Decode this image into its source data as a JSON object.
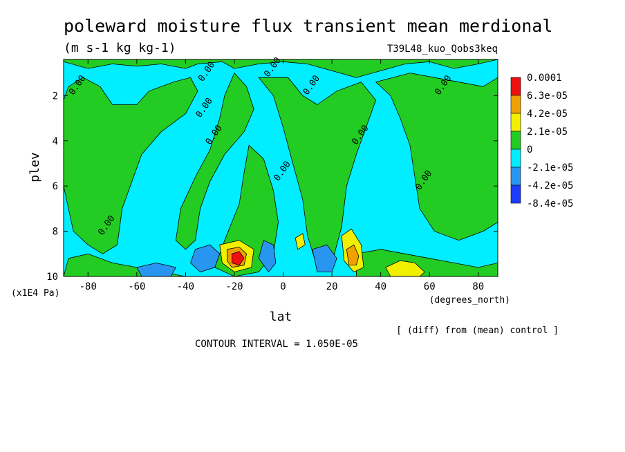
{
  "chart_data": {
    "type": "heatmap",
    "title": "poleward moisture flux transient mean merdional",
    "units": "(m s-1 kg kg-1)",
    "experiment": "T39L48_kuo_Qobs3keq",
    "xlabel": "lat",
    "xunits": "(degrees_north)",
    "ylabel": "plev",
    "yunits": "(x1E4 Pa)",
    "xlim": [
      -90,
      88
    ],
    "ylim": [
      0.4,
      10
    ],
    "y_inverted": true,
    "x_ticks": [
      -80,
      -60,
      -40,
      -20,
      0,
      20,
      40,
      60,
      80
    ],
    "y_ticks": [
      2,
      4,
      6,
      8,
      10
    ],
    "contour_label": "0.00",
    "contour_interval_text": "CONTOUR INTERVAL = 1.050E-05",
    "diff_note": "[ (diff) from (mean) control ]",
    "legend": {
      "levels": [
        "0.0001",
        "6.3e-05",
        "4.2e-05",
        "2.1e-05",
        "0",
        "-2.1e-05",
        "-4.2e-05",
        "-8.4e-05"
      ],
      "colors": [
        "#ee1010",
        "#f0a000",
        "#f0f000",
        "#22cc22",
        "#00eeff",
        "#2896f0",
        "#1e3cff"
      ]
    },
    "field_regions": [
      {
        "value": 0,
        "color": "#22cc22",
        "points": [
          [
            -90,
            0.5
          ],
          [
            -80,
            0.8
          ],
          [
            -70,
            0.6
          ],
          [
            -60,
            0.7
          ],
          [
            -50,
            0.6
          ],
          [
            -40,
            0.8
          ],
          [
            -35,
            0.6
          ],
          [
            -25,
            0.5
          ],
          [
            -20,
            0.8
          ],
          [
            -10,
            0.6
          ],
          [
            0,
            0.5
          ],
          [
            10,
            0.6
          ],
          [
            20,
            0.9
          ],
          [
            30,
            1.2
          ],
          [
            40,
            0.9
          ],
          [
            50,
            0.6
          ],
          [
            60,
            0.5
          ],
          [
            70,
            0.8
          ],
          [
            80,
            0.6
          ],
          [
            88,
            0.4
          ],
          [
            88,
            0.4
          ],
          [
            -90,
            0.4
          ]
        ]
      },
      {
        "value": 0,
        "color": "#22cc22",
        "points": [
          [
            -88,
            1.6
          ],
          [
            -82,
            1.2
          ],
          [
            -75,
            1.6
          ],
          [
            -70,
            2.4
          ],
          [
            -60,
            2.4
          ],
          [
            -55,
            1.8
          ],
          [
            -45,
            1.4
          ],
          [
            -38,
            1.2
          ],
          [
            -35,
            1.8
          ],
          [
            -40,
            2.8
          ],
          [
            -50,
            3.6
          ],
          [
            -58,
            4.6
          ],
          [
            -62,
            5.8
          ],
          [
            -66,
            7.0
          ],
          [
            -68,
            8.6
          ],
          [
            -74,
            9.0
          ],
          [
            -80,
            8.6
          ],
          [
            -86,
            8.0
          ],
          [
            -88,
            7.0
          ],
          [
            -90,
            6.0
          ],
          [
            -90,
            2.2
          ]
        ]
      },
      {
        "value": 0,
        "color": "#22cc22",
        "points": [
          [
            -20,
            1.0
          ],
          [
            -15,
            1.6
          ],
          [
            -12,
            2.6
          ],
          [
            -16,
            3.6
          ],
          [
            -24,
            4.6
          ],
          [
            -30,
            5.8
          ],
          [
            -34,
            7.0
          ],
          [
            -36,
            8.4
          ],
          [
            -40,
            8.8
          ],
          [
            -44,
            8.4
          ],
          [
            -42,
            7.0
          ],
          [
            -36,
            5.6
          ],
          [
            -30,
            4.4
          ],
          [
            -26,
            3.0
          ],
          [
            -24,
            2.0
          ]
        ]
      },
      {
        "value": 0,
        "color": "#22cc22",
        "points": [
          [
            -10,
            1.2
          ],
          [
            -4,
            2.0
          ],
          [
            0,
            3.4
          ],
          [
            4,
            5.0
          ],
          [
            8,
            6.6
          ],
          [
            10,
            8.2
          ],
          [
            14,
            9.6
          ],
          [
            20,
            9.4
          ],
          [
            24,
            7.8
          ],
          [
            26,
            6.0
          ],
          [
            30,
            4.6
          ],
          [
            34,
            3.4
          ],
          [
            38,
            2.2
          ],
          [
            32,
            1.4
          ],
          [
            22,
            1.8
          ],
          [
            14,
            2.4
          ],
          [
            8,
            2.0
          ],
          [
            2,
            1.2
          ]
        ]
      },
      {
        "value": 0,
        "color": "#22cc22",
        "points": [
          [
            -14,
            4.2
          ],
          [
            -8,
            4.8
          ],
          [
            -4,
            6.2
          ],
          [
            -2,
            7.6
          ],
          [
            -4,
            9.0
          ],
          [
            -10,
            9.8
          ],
          [
            -20,
            10.0
          ],
          [
            -28,
            9.6
          ],
          [
            -24,
            8.4
          ],
          [
            -18,
            6.8
          ],
          [
            -16,
            5.4
          ]
        ]
      },
      {
        "value": 0,
        "color": "#22cc22",
        "points": [
          [
            38,
            1.4
          ],
          [
            44,
            2.0
          ],
          [
            48,
            3.0
          ],
          [
            52,
            4.2
          ],
          [
            54,
            5.6
          ],
          [
            56,
            7.0
          ],
          [
            62,
            8.0
          ],
          [
            72,
            8.4
          ],
          [
            82,
            8.0
          ],
          [
            88,
            7.6
          ],
          [
            88,
            1.2
          ],
          [
            82,
            1.6
          ],
          [
            72,
            1.4
          ],
          [
            62,
            1.2
          ],
          [
            52,
            1.0
          ]
        ]
      },
      {
        "value": 0,
        "color": "#22cc22",
        "points": [
          [
            -88,
            9.2
          ],
          [
            -80,
            9.0
          ],
          [
            -70,
            9.4
          ],
          [
            -60,
            9.6
          ],
          [
            -50,
            9.8
          ],
          [
            -40,
            10.0
          ],
          [
            -90,
            10.0
          ]
        ]
      },
      {
        "value": 0,
        "color": "#22cc22",
        "points": [
          [
            30,
            9.0
          ],
          [
            40,
            8.8
          ],
          [
            50,
            9.0
          ],
          [
            60,
            9.2
          ],
          [
            70,
            9.4
          ],
          [
            80,
            9.6
          ],
          [
            88,
            9.4
          ],
          [
            88,
            10.0
          ],
          [
            30,
            10.0
          ]
        ]
      },
      {
        "value": -4.2e-05,
        "color": "#2896f0",
        "points": [
          [
            -36,
            8.8
          ],
          [
            -30,
            8.6
          ],
          [
            -26,
            9.0
          ],
          [
            -28,
            9.6
          ],
          [
            -34,
            9.8
          ],
          [
            -38,
            9.4
          ]
        ]
      },
      {
        "value": -4.2e-05,
        "color": "#2896f0",
        "points": [
          [
            -60,
            9.6
          ],
          [
            -52,
            9.4
          ],
          [
            -44,
            9.6
          ],
          [
            -46,
            10.0
          ],
          [
            -58,
            10.0
          ]
        ]
      },
      {
        "value": -4.2e-05,
        "color": "#2896f0",
        "points": [
          [
            -8,
            8.4
          ],
          [
            -4,
            8.6
          ],
          [
            -3,
            9.4
          ],
          [
            -6,
            9.8
          ],
          [
            -10,
            9.2
          ]
        ]
      },
      {
        "value": -4.2e-05,
        "color": "#2896f0",
        "points": [
          [
            12,
            8.8
          ],
          [
            18,
            8.6
          ],
          [
            22,
            9.2
          ],
          [
            20,
            9.8
          ],
          [
            14,
            9.8
          ]
        ]
      },
      {
        "value": 2.1e-05,
        "color": "#f0f000",
        "points": [
          [
            -26,
            8.6
          ],
          [
            -18,
            8.4
          ],
          [
            -12,
            8.8
          ],
          [
            -13,
            9.6
          ],
          [
            -20,
            9.8
          ],
          [
            -25,
            9.4
          ]
        ]
      },
      {
        "value": 2.1e-05,
        "color": "#f0f000",
        "points": [
          [
            24,
            8.2
          ],
          [
            28,
            7.9
          ],
          [
            32,
            8.6
          ],
          [
            33,
            9.6
          ],
          [
            29,
            9.8
          ],
          [
            25,
            9.3
          ]
        ]
      },
      {
        "value": 2.1e-05,
        "color": "#f0f000",
        "points": [
          [
            42,
            9.6
          ],
          [
            48,
            9.3
          ],
          [
            54,
            9.4
          ],
          [
            58,
            9.8
          ],
          [
            56,
            10.0
          ],
          [
            44,
            10.0
          ]
        ]
      },
      {
        "value": 2.1e-05,
        "color": "#f0f000",
        "points": [
          [
            5,
            8.3
          ],
          [
            8,
            8.1
          ],
          [
            9,
            8.6
          ],
          [
            6,
            8.8
          ]
        ]
      },
      {
        "value": 4.2e-05,
        "color": "#f0a000",
        "points": [
          [
            -23,
            8.8
          ],
          [
            -18,
            8.7
          ],
          [
            -15,
            9.0
          ],
          [
            -16,
            9.5
          ],
          [
            -21,
            9.6
          ],
          [
            -23,
            9.3
          ]
        ]
      },
      {
        "value": 4.2e-05,
        "color": "#f0a000",
        "points": [
          [
            26,
            8.8
          ],
          [
            29,
            8.6
          ],
          [
            31,
            9.1
          ],
          [
            30,
            9.5
          ],
          [
            27,
            9.5
          ]
        ]
      },
      {
        "value": 6.3e-05,
        "color": "#ee1010",
        "points": [
          [
            -21,
            9.0
          ],
          [
            -18,
            8.9
          ],
          [
            -16,
            9.2
          ],
          [
            -18,
            9.5
          ],
          [
            -21,
            9.4
          ]
        ]
      }
    ],
    "zero_label_positions": [
      [
        -74,
        8.2
      ],
      [
        -86,
        2.0
      ],
      [
        -33,
        1.4
      ],
      [
        -34,
        3.0
      ],
      [
        -30,
        4.2
      ],
      [
        -6,
        1.2
      ],
      [
        10,
        2.0
      ],
      [
        30,
        4.2
      ],
      [
        -2,
        5.8
      ],
      [
        56,
        6.2
      ],
      [
        64,
        2.0
      ]
    ]
  }
}
